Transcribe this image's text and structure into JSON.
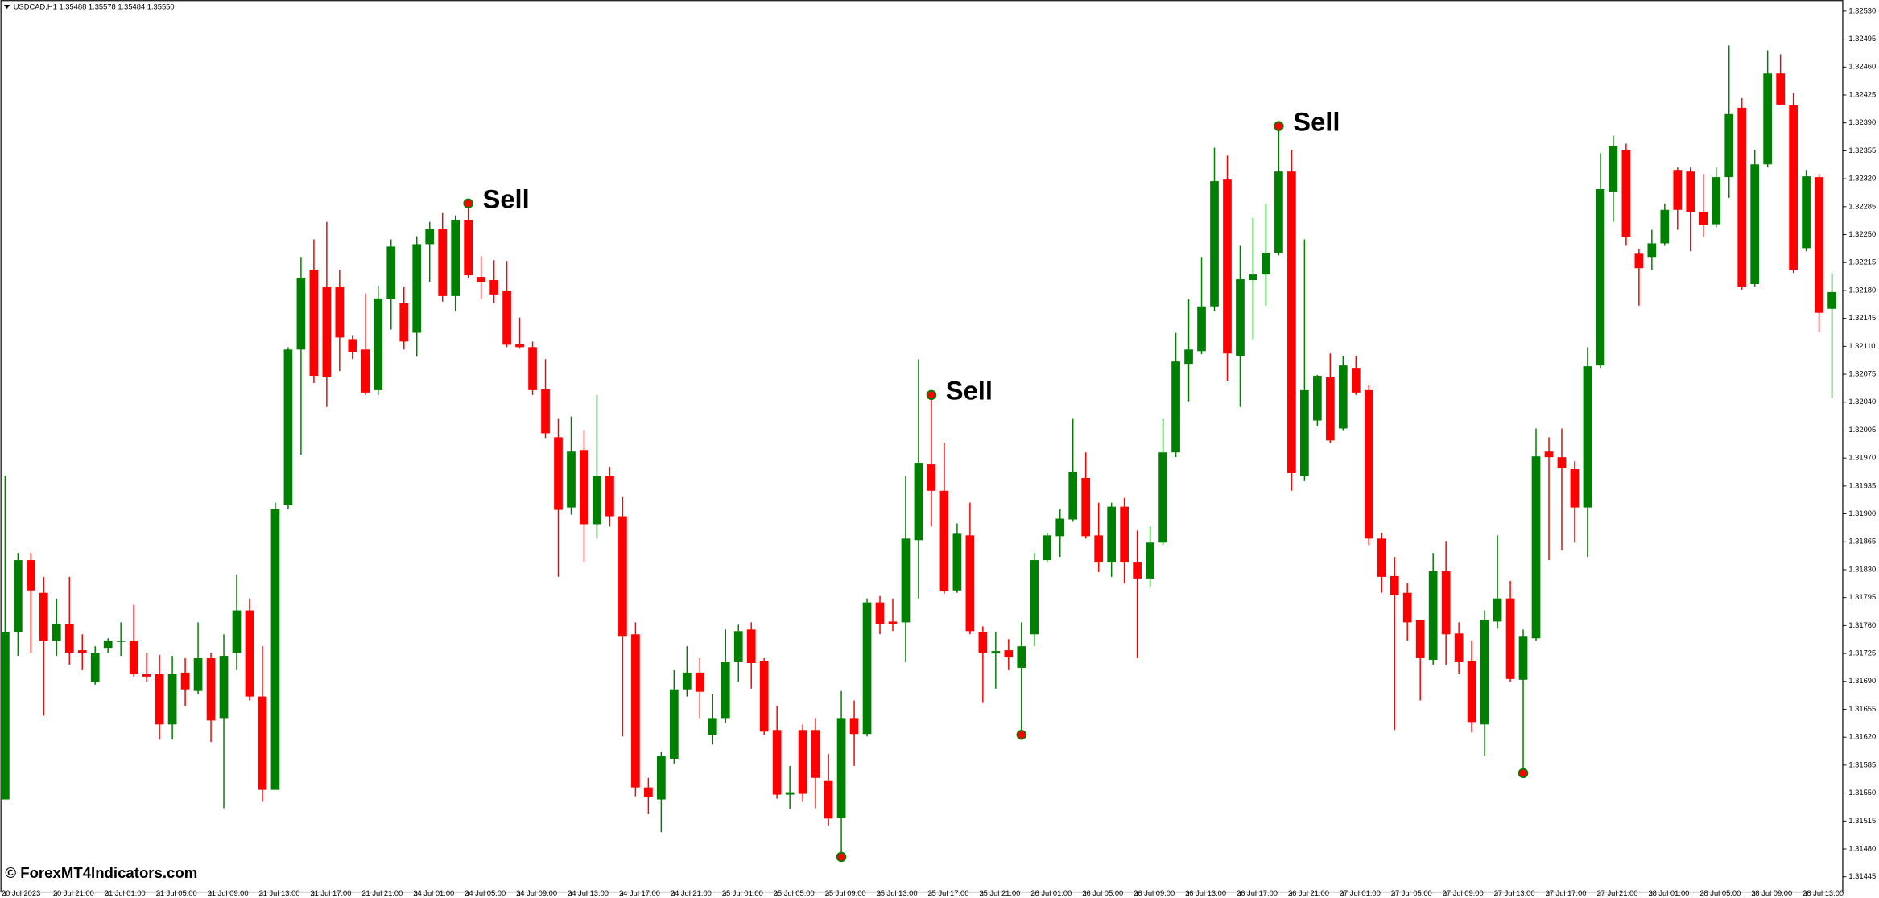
{
  "header": "USDCAD,H1  1.35488 1.35578 1.35484 1.35550",
  "watermark": "© ForexMT4Indicators.com",
  "chart_data": {
    "type": "candlestick",
    "up_color": "#008000",
    "down_color": "#ff0000",
    "ylim": [
      1.31426,
      1.32541
    ],
    "yticks": [
      {
        "value": 1.3253,
        "label": "1.32530"
      },
      1.32495,
      {
        "value": 1.3246,
        "label": "1.32460"
      },
      1.32425,
      {
        "value": 1.3239,
        "label": "1.32390"
      },
      1.32355,
      {
        "value": 1.3232,
        "label": "1.32320"
      },
      1.32285,
      {
        "value": 1.3225,
        "label": "1.32250"
      },
      1.32215,
      {
        "value": 1.3218,
        "label": "1.32180"
      },
      1.32145,
      {
        "value": 1.3211,
        "label": "1.32110"
      },
      1.32075,
      {
        "value": 1.3204,
        "label": "1.32040"
      },
      1.32005,
      {
        "value": 1.3197,
        "label": "1.31970"
      },
      1.31935,
      {
        "value": 1.319,
        "label": "1.31900"
      },
      1.31865,
      {
        "value": 1.3183,
        "label": "1.31830"
      },
      1.31795,
      {
        "value": 1.3176,
        "label": "1.31760"
      },
      1.31725,
      {
        "value": 1.3169,
        "label": "1.31690"
      },
      1.31655,
      {
        "value": 1.3162,
        "label": "1.31620"
      },
      1.31585,
      {
        "value": 1.3155,
        "label": "1.31550"
      },
      1.31515,
      {
        "value": 1.3148,
        "label": "1.31480"
      },
      1.31445
    ],
    "categories": [
      "20 Jul 2023",
      null,
      null,
      null,
      "20 Jul 21:00",
      null,
      null,
      null,
      "21 Jul 01:00",
      null,
      null,
      null,
      "21 Jul 05:00",
      null,
      null,
      null,
      "21 Jul 09:00",
      null,
      null,
      null,
      "21 Jul 13:00",
      null,
      null,
      null,
      "21 Jul 17:00",
      null,
      null,
      null,
      "21 Jul 21:00",
      null,
      null,
      null,
      "24 Jul 01:00",
      null,
      null,
      null,
      "24 Jul 05:00",
      null,
      null,
      null,
      "24 Jul 09:00",
      null,
      null,
      null,
      "24 Jul 13:00",
      null,
      null,
      null,
      "24 Jul 17:00",
      null,
      null,
      null,
      "24 Jul 21:00",
      null,
      null,
      null,
      "25 Jul 01:00",
      null,
      null,
      null,
      "25 Jul 05:00",
      null,
      null,
      null,
      "25 Jul 09:00",
      null,
      null,
      null,
      "25 Jul 13:00",
      null,
      null,
      null,
      "25 Jul 17:00",
      null,
      null,
      null,
      "25 Jul 21:00",
      null,
      null,
      null,
      "26 Jul 01:00",
      null,
      null,
      null,
      "26 Jul 05:00",
      null,
      null,
      null,
      "26 Jul 09:00",
      null,
      null,
      null,
      "26 Jul 13:00",
      null,
      null,
      null,
      "26 Jul 17:00",
      null,
      null,
      null,
      "26 Jul 21:00",
      null,
      null,
      null,
      "27 Jul 01:00",
      null,
      null,
      null,
      "27 Jul 05:00",
      null,
      null,
      null,
      "27 Jul 09:00",
      null,
      null,
      null,
      "27 Jul 13:00",
      null,
      null,
      null,
      "27 Jul 17:00",
      null,
      null,
      null,
      "27 Jul 21:00",
      null,
      null,
      null,
      "28 Jul 01:00",
      null,
      null,
      null,
      "28 Jul 05:00",
      null,
      null,
      null,
      "28 Jul 09:00",
      null,
      null,
      null,
      "28 Jul 13:00",
      null,
      null
    ],
    "open": [
      1.31542,
      1.31752,
      1.31842,
      1.31801,
      1.31741,
      1.31762,
      1.31729,
      1.31689,
      1.31732,
      1.3174,
      1.31741,
      1.31699,
      1.31699,
      1.31636,
      1.31701,
      1.31678,
      1.31719,
      1.31644,
      1.31726,
      1.31779,
      1.31671,
      1.31554,
      1.31911,
      1.32106,
      1.32206,
      1.32184,
      1.32184,
      1.32119,
      1.32106,
      1.32055,
      1.32169,
      1.32164,
      1.32127,
      1.32238,
      1.32257,
      1.32173,
      1.32268,
      1.32197,
      1.32193,
      1.32179,
      1.32113,
      1.32109,
      1.32056,
      1.31996,
      1.31908,
      1.3198,
      1.31887,
      1.31948,
      1.31897,
      1.31749,
      1.31557,
      1.31542,
      1.31593,
      1.3168,
      1.31701,
      1.31623,
      1.31644,
      1.31714,
      1.31755,
      1.31716,
      1.31629,
      1.31548,
      1.31629,
      1.31629,
      1.31566,
      1.31519,
      1.31644,
      1.31624,
      1.31789,
      1.31765,
      1.31764,
      1.31867,
      1.31962,
      1.31929,
      1.31804,
      1.31873,
      1.31752,
      1.31725,
      1.31729,
      1.31707,
      1.31749,
      1.31842,
      1.31872,
      1.31893,
      1.31945,
      1.31873,
      1.31839,
      1.31909,
      1.31839,
      1.31819,
      1.31864,
      1.31977,
      1.32088,
      1.32104,
      1.3216,
      1.32319,
      1.32098,
      1.32193,
      1.322,
      1.32227,
      1.32329,
      1.31947,
      1.32017,
      1.32071,
      1.32007,
      1.32083,
      1.32055,
      1.31869,
      1.31822,
      1.31801,
      1.31767,
      1.31717,
      1.31828,
      1.3175,
      1.31716,
      1.31636,
      1.31765,
      1.31794,
      1.31692,
      1.31744,
      1.31978,
      1.31971,
      1.31956,
      1.31908,
      1.32086,
      1.32304,
      1.32356,
      1.32226,
      1.32221,
      1.32239,
      1.32331,
      1.32329,
      1.32278,
      1.32263,
      1.32322,
      1.32409,
      1.32188,
      1.32338,
      1.32452,
      1.32412,
      1.32233,
      1.32322,
      1.32157
    ],
    "high": [
      1.31948,
      1.31851,
      1.31851,
      1.31821,
      1.31794,
      1.31821,
      1.31749,
      1.31734,
      1.31744,
      1.31764,
      1.31786,
      1.31726,
      1.31723,
      1.31722,
      1.31719,
      1.31764,
      1.31726,
      1.31749,
      1.31824,
      1.31794,
      1.31734,
      1.31914,
      1.32109,
      1.32221,
      1.32244,
      1.32266,
      1.32206,
      1.32124,
      1.32176,
      1.32185,
      1.32244,
      1.32184,
      1.32248,
      1.32266,
      1.32277,
      1.32274,
      1.32289,
      1.32223,
      1.32218,
      1.32217,
      1.32146,
      1.32116,
      1.32094,
      1.32019,
      1.32022,
      1.32004,
      1.32049,
      1.31959,
      1.31921,
      1.31764,
      1.31569,
      1.31602,
      1.31704,
      1.31734,
      1.31719,
      1.31674,
      1.31755,
      1.31761,
      1.31764,
      1.31719,
      1.31659,
      1.31584,
      1.31636,
      1.31644,
      1.31599,
      1.31678,
      1.31666,
      1.31794,
      1.31797,
      1.31794,
      1.31947,
      1.32094,
      1.32049,
      1.31989,
      1.31888,
      1.31914,
      1.31759,
      1.31752,
      1.31743,
      1.31764,
      1.31851,
      1.31876,
      1.31906,
      1.32019,
      1.31977,
      1.31914,
      1.31914,
      1.3192,
      1.31879,
      1.31884,
      1.32019,
      1.32127,
      1.32169,
      1.32221,
      1.32359,
      1.32349,
      1.32236,
      1.32271,
      1.32289,
      1.32386,
      1.32356,
      1.32244,
      1.32074,
      1.32101,
      1.32098,
      1.32098,
      1.32061,
      1.31876,
      1.31846,
      1.31813,
      1.31767,
      1.31851,
      1.31866,
      1.31764,
      1.31741,
      1.31779,
      1.31873,
      1.31816,
      1.31755,
      1.32007,
      1.31996,
      1.32007,
      1.31966,
      1.32109,
      1.32352,
      1.32374,
      1.32364,
      1.32232,
      1.32256,
      1.32289,
      1.32334,
      1.32334,
      1.32326,
      1.32334,
      1.32487,
      1.32421,
      1.32356,
      1.32481,
      1.32476,
      1.32428,
      1.32331,
      1.32326,
      1.32202
    ],
    "low": [
      1.31542,
      1.31722,
      1.31726,
      1.31647,
      1.31722,
      1.31711,
      1.31704,
      1.31686,
      1.31726,
      1.31722,
      1.31696,
      1.31689,
      1.31617,
      1.31617,
      1.31659,
      1.31674,
      1.31614,
      1.31531,
      1.31704,
      1.31666,
      1.31539,
      1.31554,
      1.31906,
      1.31974,
      1.32064,
      1.32034,
      1.32079,
      1.32094,
      1.32049,
      1.32049,
      1.32131,
      1.32106,
      1.32097,
      1.32191,
      1.32166,
      1.32154,
      1.32196,
      1.32169,
      1.32164,
      1.32109,
      1.32107,
      1.32049,
      1.31995,
      1.31821,
      1.31899,
      1.31839,
      1.31869,
      1.31884,
      1.31621,
      1.31546,
      1.31524,
      1.31501,
      1.31587,
      1.31671,
      1.31644,
      1.31611,
      1.31638,
      1.31689,
      1.31681,
      1.31623,
      1.31543,
      1.3153,
      1.31539,
      1.31531,
      1.31509,
      1.31476,
      1.31584,
      1.31621,
      1.31749,
      1.31753,
      1.31714,
      1.31794,
      1.31884,
      1.318,
      1.31801,
      1.31749,
      1.31663,
      1.31681,
      1.31704,
      1.31629,
      1.31734,
      1.31839,
      1.31846,
      1.3189,
      1.31869,
      1.31827,
      1.31821,
      1.31813,
      1.31719,
      1.31809,
      1.31861,
      1.31971,
      1.32041,
      1.321,
      1.32154,
      1.32067,
      1.32034,
      1.32119,
      1.32161,
      1.32224,
      1.31929,
      1.31941,
      1.3201,
      1.31989,
      1.32004,
      1.32049,
      1.31861,
      1.31801,
      1.31629,
      1.31741,
      1.31666,
      1.31711,
      1.31711,
      1.31699,
      1.31626,
      1.31596,
      1.31756,
      1.31689,
      1.31581,
      1.31741,
      1.31842,
      1.31854,
      1.31864,
      1.31846,
      1.32083,
      1.32266,
      1.32236,
      1.32161,
      1.32206,
      1.32236,
      1.32256,
      1.32229,
      1.32247,
      1.32259,
      1.32296,
      1.32181,
      1.32184,
      1.32334,
      1.32412,
      1.32202,
      1.32229,
      1.32128,
      1.32046
    ],
    "close": [
      1.31752,
      1.31842,
      1.31804,
      1.31741,
      1.31762,
      1.31726,
      1.31726,
      1.31726,
      1.31741,
      1.31741,
      1.31699,
      1.31696,
      1.31636,
      1.31699,
      1.3168,
      1.31719,
      1.31641,
      1.31722,
      1.31779,
      1.31671,
      1.31554,
      1.31906,
      1.32106,
      1.32196,
      1.32073,
      1.32071,
      1.32121,
      1.32103,
      1.32052,
      1.3217,
      1.32235,
      1.32116,
      1.32238,
      1.32257,
      1.32173,
      1.32268,
      1.32199,
      1.3219,
      1.32175,
      1.32112,
      1.32109,
      1.32055,
      1.32001,
      1.31905,
      1.31978,
      1.31887,
      1.31947,
      1.31897,
      1.31746,
      1.31557,
      1.31545,
      1.31596,
      1.3168,
      1.31701,
      1.31677,
      1.31644,
      1.31714,
      1.31753,
      1.31713,
      1.31627,
      1.31548,
      1.31551,
      1.31549,
      1.31569,
      1.31518,
      1.31644,
      1.31624,
      1.31789,
      1.31762,
      1.31762,
      1.31869,
      1.31963,
      1.31929,
      1.31803,
      1.31875,
      1.31753,
      1.31726,
      1.31728,
      1.3172,
      1.31734,
      1.31842,
      1.31873,
      1.31894,
      1.31953,
      1.31872,
      1.31839,
      1.31909,
      1.31839,
      1.31819,
      1.31864,
      1.31977,
      1.32091,
      1.32106,
      1.3216,
      1.32317,
      1.32101,
      1.32194,
      1.322,
      1.32227,
      1.32329,
      1.31951,
      1.32055,
      1.32073,
      1.31992,
      1.32086,
      1.32052,
      1.31869,
      1.31821,
      1.31798,
      1.31764,
      1.31719,
      1.31828,
      1.31749,
      1.31714,
      1.31639,
      1.31767,
      1.31794,
      1.31693,
      1.31746,
      1.31972,
      1.31971,
      1.31957,
      1.31908,
      1.32085,
      1.32307,
      1.32361,
      1.32247,
      1.32208,
      1.32239,
      1.32281,
      1.32281,
      1.32278,
      1.32262,
      1.32322,
      1.32401,
      1.32184,
      1.32338,
      1.32452,
      1.32413,
      1.32206,
      1.32323,
      1.32152,
      1.32178
    ],
    "sell_signals": [
      {
        "candle": 36,
        "label": "Sell"
      },
      {
        "candle": 72,
        "label": "Sell"
      },
      {
        "candle": 99,
        "label": "Sell"
      }
    ],
    "buy_signals": [
      {
        "candle": 65
      },
      {
        "candle": 79
      },
      {
        "candle": 118
      }
    ]
  }
}
